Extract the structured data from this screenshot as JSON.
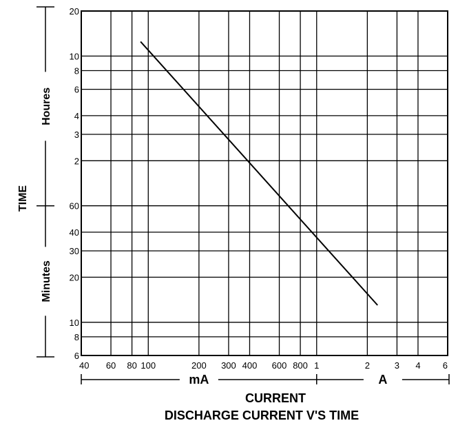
{
  "chart_data": {
    "type": "line",
    "title": "DISCHARGE CURRENT V'S TIME",
    "xlabel": "CURRENT",
    "ylabel": "TIME",
    "x_scale": "log",
    "y_scale": "log",
    "x_unit_groups": [
      {
        "label": "mA",
        "range_mA": [
          40,
          1000
        ]
      },
      {
        "label": "A",
        "range_mA": [
          1000,
          6000
        ]
      }
    ],
    "y_unit_groups": [
      {
        "label": "Houres",
        "range_min": [
          60,
          1200
        ]
      },
      {
        "label": "Minutes",
        "range_min": [
          6,
          60
        ]
      }
    ],
    "x_ticks": [
      {
        "value_mA": 40,
        "label": "40"
      },
      {
        "value_mA": 60,
        "label": "60"
      },
      {
        "value_mA": 80,
        "label": "80"
      },
      {
        "value_mA": 100,
        "label": "100"
      },
      {
        "value_mA": 200,
        "label": "200"
      },
      {
        "value_mA": 300,
        "label": "300"
      },
      {
        "value_mA": 400,
        "label": "400"
      },
      {
        "value_mA": 600,
        "label": "600"
      },
      {
        "value_mA": 800,
        "label": "800"
      },
      {
        "value_mA": 1000,
        "label": "1"
      },
      {
        "value_mA": 2000,
        "label": "2"
      },
      {
        "value_mA": 3000,
        "label": "3"
      },
      {
        "value_mA": 4000,
        "label": "4"
      },
      {
        "value_mA": 6000,
        "label": "6"
      }
    ],
    "y_ticks": [
      {
        "value_min": 6,
        "label": "6"
      },
      {
        "value_min": 8,
        "label": "8"
      },
      {
        "value_min": 10,
        "label": "10"
      },
      {
        "value_min": 20,
        "label": "20"
      },
      {
        "value_min": 30,
        "label": "30"
      },
      {
        "value_min": 40,
        "label": "40"
      },
      {
        "value_min": 60,
        "label": "60"
      },
      {
        "value_min": 120,
        "label": "2"
      },
      {
        "value_min": 180,
        "label": "3"
      },
      {
        "value_min": 240,
        "label": "4"
      },
      {
        "value_min": 360,
        "label": "6"
      },
      {
        "value_min": 480,
        "label": "8"
      },
      {
        "value_min": 600,
        "label": "10"
      },
      {
        "value_min": 1200,
        "label": "20"
      }
    ],
    "xlim_mA": [
      40,
      6000
    ],
    "ylim_min": [
      6,
      1200
    ],
    "grid": true,
    "series": [
      {
        "x_mA": [
          90,
          2300
        ],
        "y_min": [
          750,
          13
        ]
      }
    ]
  }
}
